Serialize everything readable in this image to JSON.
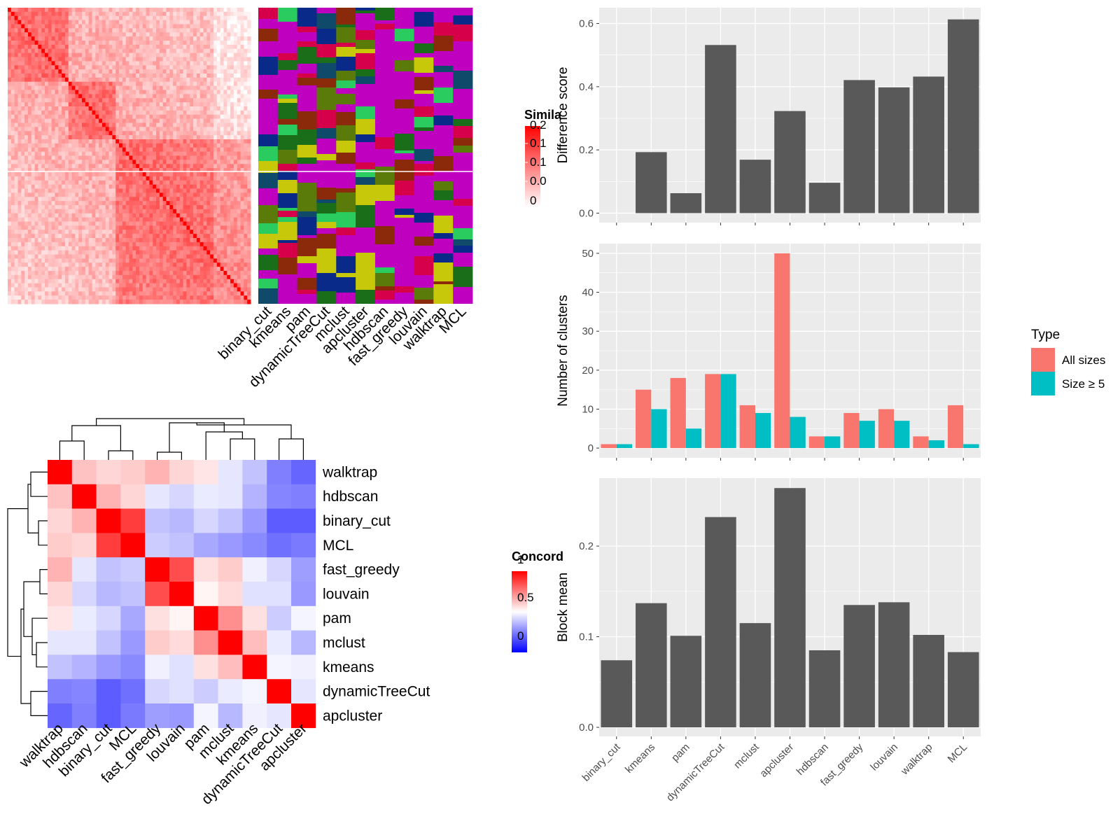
{
  "methods_order": [
    "binary_cut",
    "kmeans",
    "pam",
    "dynamicTreeCut",
    "mclust",
    "apcluster",
    "hdbscan",
    "fast_greedy",
    "louvain",
    "walktrap",
    "MCL"
  ],
  "colors": {
    "bar": "#595959",
    "all_sizes": "#F8766D",
    "size_ge5": "#00BFC4",
    "panel_bg": "#EBEBEB",
    "grid": "#FFFFFF",
    "sim_high": "#FF0000",
    "conc_low": "#0000FF",
    "conc_mid": "#FFFFFF",
    "conc_high": "#FF0000",
    "class_palette": [
      "#BF00BF",
      "#1A6E1A",
      "#0F4A6B",
      "#5A7A0A",
      "#8A2A0A",
      "#C8C80A",
      "#0A2A8A",
      "#D6004A",
      "#2ACC60"
    ]
  },
  "similarity_heatmap": {
    "legend_title": "Simila",
    "legend_ticks": [
      "0.2",
      "0.1",
      "0.1",
      "0.0",
      "0"
    ]
  },
  "concordance_heatmap": {
    "legend_title": "Concord",
    "legend_ticks": [
      "1",
      "0.5",
      "0"
    ],
    "row_labels": [
      "walktrap",
      "hdbscan",
      "binary_cut",
      "MCL",
      "fast_greedy",
      "louvain",
      "pam",
      "mclust",
      "kmeans",
      "dynamicTreeCut",
      "apcluster"
    ],
    "col_labels": [
      "walktrap",
      "hdbscan",
      "binary_cut",
      "MCL",
      "fast_greedy",
      "louvain",
      "pam",
      "mclust",
      "kmeans",
      "dynamicTreeCut",
      "apcluster"
    ]
  },
  "chart_data": [
    {
      "type": "bar",
      "title": "",
      "xlabel": "",
      "ylabel": "Difference score",
      "categories": [
        "binary_cut",
        "kmeans",
        "pam",
        "dynamicTreeCut",
        "mclust",
        "apcluster",
        "hdbscan",
        "fast_greedy",
        "louvain",
        "walktrap",
        "MCL"
      ],
      "values": [
        0.0,
        0.193,
        0.063,
        0.532,
        0.169,
        0.323,
        0.096,
        0.421,
        0.398,
        0.432,
        0.613
      ],
      "ylim": [
        -0.03,
        0.65
      ],
      "yticks": [
        0.0,
        0.2,
        0.4,
        0.6
      ],
      "ytick_labels": [
        "0.0",
        "0.2",
        "0.4",
        "0.6"
      ],
      "grid": true
    },
    {
      "type": "bar",
      "title": "",
      "xlabel": "",
      "ylabel": "Number of clusters",
      "legend_title": "Type",
      "legend_position": "right",
      "categories": [
        "binary_cut",
        "kmeans",
        "pam",
        "dynamicTreeCut",
        "mclust",
        "apcluster",
        "hdbscan",
        "fast_greedy",
        "louvain",
        "walktrap",
        "MCL"
      ],
      "series": [
        {
          "name": "All sizes",
          "values": [
            1,
            15,
            18,
            19,
            11,
            50,
            3,
            9,
            10,
            3,
            11
          ]
        },
        {
          "name": "Size ≥ 5",
          "values": [
            1,
            10,
            5,
            19,
            9,
            8,
            3,
            7,
            7,
            2,
            1
          ]
        }
      ],
      "ylim": [
        -2.5,
        52.5
      ],
      "yticks": [
        0,
        10,
        20,
        30,
        40,
        50
      ],
      "ytick_labels": [
        "0",
        "10",
        "20",
        "30",
        "40",
        "50"
      ],
      "grid": true
    },
    {
      "type": "bar",
      "title": "",
      "xlabel": "",
      "ylabel": "Block mean",
      "categories": [
        "binary_cut",
        "kmeans",
        "pam",
        "dynamicTreeCut",
        "mclust",
        "apcluster",
        "hdbscan",
        "fast_greedy",
        "louvain",
        "walktrap",
        "MCL"
      ],
      "values": [
        0.074,
        0.137,
        0.101,
        0.232,
        0.115,
        0.264,
        0.085,
        0.135,
        0.138,
        0.102,
        0.083
      ],
      "ylim": [
        -0.01,
        0.275
      ],
      "yticks": [
        0.0,
        0.1,
        0.2
      ],
      "ytick_labels": [
        "0.0",
        "0.1",
        "0.2"
      ],
      "grid": true
    },
    {
      "type": "heatmap",
      "title": "",
      "name": "",
      "legend_title": "Concord",
      "rows": [
        "walktrap",
        "hdbscan",
        "binary_cut",
        "MCL",
        "fast_greedy",
        "louvain",
        "pam",
        "mclust",
        "kmeans",
        "dynamicTreeCut",
        "apcluster"
      ],
      "cols": [
        "walktrap",
        "hdbscan",
        "binary_cut",
        "MCL",
        "fast_greedy",
        "louvain",
        "pam",
        "mclust",
        "kmeans",
        "dynamicTreeCut",
        "apcluster"
      ],
      "values": [
        [
          1.0,
          0.62,
          0.58,
          0.6,
          0.65,
          0.58,
          0.55,
          0.45,
          0.38,
          0.25,
          0.2
        ],
        [
          0.62,
          1.0,
          0.65,
          0.58,
          0.45,
          0.42,
          0.46,
          0.45,
          0.35,
          0.26,
          0.25
        ],
        [
          0.58,
          0.65,
          1.0,
          0.88,
          0.38,
          0.36,
          0.42,
          0.38,
          0.3,
          0.18,
          0.18
        ],
        [
          0.6,
          0.58,
          0.88,
          1.0,
          0.4,
          0.38,
          0.33,
          0.3,
          0.27,
          0.22,
          0.24
        ],
        [
          0.65,
          0.45,
          0.38,
          0.4,
          1.0,
          0.85,
          0.56,
          0.6,
          0.47,
          0.42,
          0.31
        ],
        [
          0.58,
          0.42,
          0.36,
          0.38,
          0.85,
          1.0,
          0.52,
          0.57,
          0.44,
          0.44,
          0.3
        ],
        [
          0.55,
          0.46,
          0.42,
          0.33,
          0.56,
          0.52,
          1.0,
          0.72,
          0.56,
          0.4,
          0.48
        ],
        [
          0.45,
          0.45,
          0.38,
          0.3,
          0.6,
          0.57,
          0.72,
          1.0,
          0.63,
          0.46,
          0.36
        ],
        [
          0.38,
          0.35,
          0.3,
          0.27,
          0.47,
          0.44,
          0.56,
          0.63,
          1.0,
          0.48,
          0.47
        ],
        [
          0.25,
          0.26,
          0.18,
          0.22,
          0.42,
          0.44,
          0.4,
          0.46,
          0.48,
          1.0,
          0.45
        ],
        [
          0.2,
          0.25,
          0.18,
          0.24,
          0.31,
          0.3,
          0.48,
          0.36,
          0.47,
          0.45,
          1.0
        ]
      ],
      "zlim": [
        0,
        1
      ]
    }
  ]
}
